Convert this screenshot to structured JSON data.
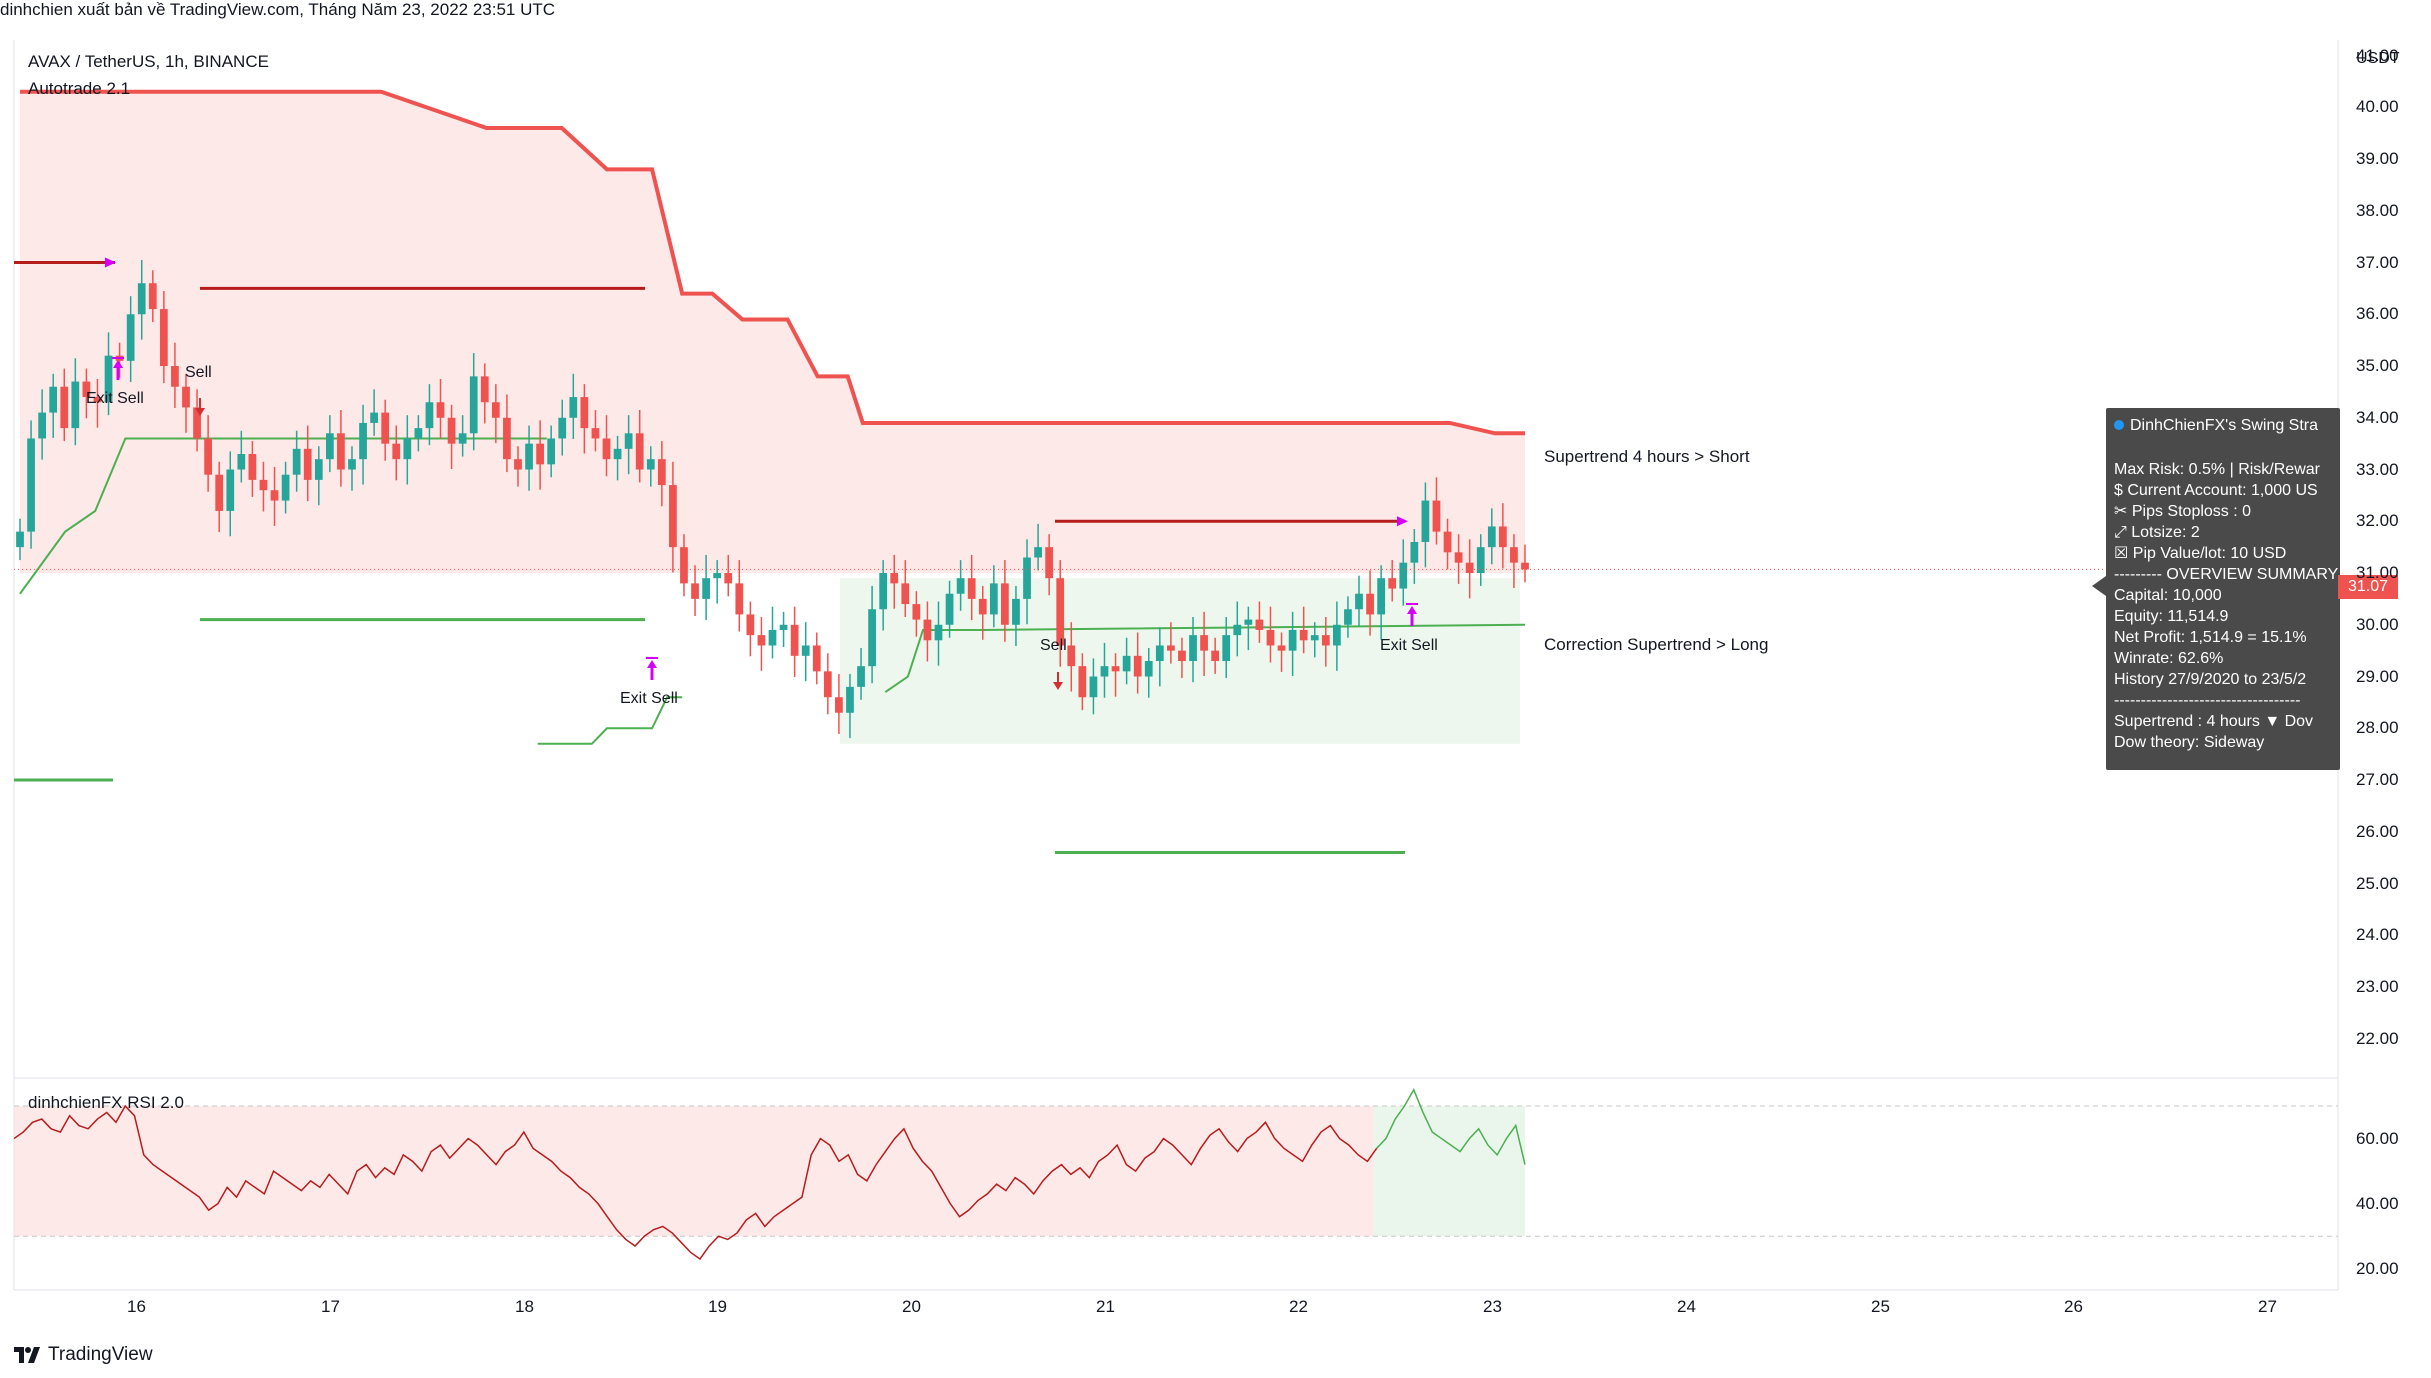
{
  "header": {
    "credit": "dinhchien xuất bản về TradingView.com, Tháng Năm 23, 2022 23:51 UTC"
  },
  "legend": {
    "symbol": "AVAX / TetherUS, 1h, BINANCE",
    "indicator": "Autotrade 2.1",
    "rsi_name": "dinhchienFX RSI 2.0"
  },
  "annotations": {
    "sell_1": "Sell",
    "exit_sell_1": "Exit Sell",
    "exit_sell_2": "Exit Sell",
    "sell_2": "Sell",
    "exit_sell_3": "Exit Sell",
    "supertrend_label": "Supertrend 4 hours > Short",
    "correction_label": "Correction Supertrend  > Long"
  },
  "info_panel": {
    "title": "DinhChienFX's Swing Stra",
    "rows": [
      "Max Risk: 0.5% | Risk/Rewar",
      "$ Current Account: 1,000 US",
      "✂ Pips Stoploss : 0",
      "⤢ Lotsize: 2",
      "☒ Pip Value/lot: 10 USD",
      "--------- OVERVIEW SUMMARY",
      "Capital: 10,000",
      "Equity: 11,514.9",
      "Net Profit: 1,514.9 = 15.1%",
      "Winrate: 62.6%",
      "History 27/9/2020 to 23/5/2",
      "-----------------------------------",
      "Supertrend : 4 hours  ▼  Dov",
      "Dow theory: Sideway"
    ]
  },
  "price_badge": "31.07",
  "axis": {
    "currency": "USDT",
    "y_ticks": [
      "41.00",
      "40.00",
      "39.00",
      "38.00",
      "37.00",
      "36.00",
      "35.00",
      "34.00",
      "33.00",
      "32.00",
      "31.00",
      "30.00",
      "29.00",
      "28.00",
      "27.00",
      "26.00",
      "25.00",
      "24.00",
      "23.00",
      "22.00"
    ],
    "rsi_ticks": [
      "60.00",
      "40.00",
      "20.00"
    ],
    "x_ticks": [
      "16",
      "17",
      "18",
      "19",
      "20",
      "21",
      "22",
      "23",
      "24",
      "25",
      "26",
      "27"
    ]
  },
  "footer": {
    "brand": "TradingView"
  },
  "colors": {
    "bull": "#26a69a",
    "bear": "#ef5350",
    "supertrend": "#ef5350",
    "correction": "#4caf50",
    "sell_level": "#b71c1c",
    "marker": "#d500f9",
    "short_zone": "#fde0e0",
    "long_zone": "#e8f5e9"
  },
  "chart_data": [
    {
      "type": "candlestick",
      "title": "AVAX / TetherUS, 1h, BINANCE",
      "x_ticks": [
        "16",
        "17",
        "18",
        "19",
        "20",
        "21",
        "22",
        "23",
        "24",
        "25",
        "26",
        "27"
      ],
      "ylim": [
        21.3,
        41.3
      ],
      "last_price": 31.07,
      "closes": [
        31.8,
        33.6,
        34.1,
        34.6,
        33.8,
        34.7,
        34.4,
        34.3,
        35.2,
        35.1,
        36.0,
        36.6,
        36.1,
        35.0,
        34.6,
        34.2,
        33.6,
        32.9,
        32.2,
        33.0,
        33.3,
        32.8,
        32.6,
        32.4,
        32.9,
        33.4,
        32.8,
        33.2,
        33.7,
        33.0,
        33.2,
        33.9,
        34.1,
        33.5,
        33.2,
        33.6,
        33.8,
        34.3,
        34.0,
        33.5,
        33.7,
        34.8,
        34.3,
        34.0,
        33.2,
        33.0,
        33.5,
        33.1,
        33.6,
        34.0,
        34.4,
        33.8,
        33.6,
        33.2,
        33.4,
        33.7,
        33.0,
        33.2,
        32.7,
        31.5,
        30.8,
        30.5,
        30.9,
        31.0,
        30.8,
        30.2,
        29.8,
        29.6,
        29.9,
        30.0,
        29.4,
        29.6,
        29.1,
        28.6,
        28.3,
        28.8,
        29.2,
        30.3,
        31.0,
        30.8,
        30.4,
        30.1,
        29.7,
        30.0,
        30.6,
        30.9,
        30.5,
        30.2,
        30.8,
        30.0,
        30.5,
        31.3,
        31.5,
        30.9,
        29.6,
        29.2,
        28.6,
        29.0,
        29.2,
        29.1,
        29.4,
        29.0,
        29.3,
        29.6,
        29.5,
        29.3,
        29.8,
        29.5,
        29.3,
        29.8,
        30.0,
        30.1,
        29.9,
        29.6,
        29.5,
        29.9,
        29.7,
        29.8,
        29.6,
        30.0,
        30.3,
        30.6,
        30.2,
        30.9,
        30.7,
        31.2,
        31.6,
        32.4,
        31.8,
        31.4,
        31.2,
        31.0,
        31.5,
        31.9,
        31.5,
        31.2,
        31.07
      ],
      "supertrend_4h_short": [
        [
          0,
          40.3
        ],
        [
          0.24,
          40.3
        ],
        [
          0.31,
          39.6
        ],
        [
          0.36,
          39.6
        ],
        [
          0.39,
          38.8
        ],
        [
          0.42,
          38.8
        ],
        [
          0.44,
          36.4
        ],
        [
          0.46,
          36.4
        ],
        [
          0.48,
          35.9
        ],
        [
          0.51,
          35.9
        ],
        [
          0.53,
          34.8
        ],
        [
          0.55,
          34.8
        ],
        [
          0.56,
          33.9
        ],
        [
          0.6,
          33.9
        ],
        [
          0.65,
          33.9
        ],
        [
          0.95,
          33.9
        ],
        [
          0.98,
          33.7
        ],
        [
          1.0,
          33.7
        ]
      ],
      "sell_levels": [
        37.0,
        36.5,
        32.0
      ],
      "stop_levels": [
        30.1,
        27.0,
        25.6
      ]
    },
    {
      "type": "line",
      "title": "dinhchienFX RSI 2.0",
      "ylim": [
        15,
        78
      ],
      "ticks": [
        60,
        40,
        20
      ],
      "upper_band": 70,
      "lower_band": 30,
      "values": [
        60,
        62,
        65,
        66,
        63,
        62,
        67,
        64,
        63,
        66,
        68,
        65,
        70,
        67,
        55,
        52,
        50,
        48,
        46,
        44,
        42,
        38,
        40,
        45,
        42,
        47,
        45,
        43,
        50,
        48,
        46,
        44,
        47,
        45,
        49,
        46,
        43,
        50,
        52,
        48,
        51,
        49,
        55,
        53,
        50,
        56,
        58,
        54,
        57,
        60,
        58,
        55,
        52,
        56,
        58,
        62,
        57,
        55,
        53,
        50,
        48,
        45,
        43,
        40,
        36,
        32,
        29,
        27,
        30,
        32,
        33,
        31,
        28,
        25,
        23,
        27,
        30,
        29,
        31,
        35,
        37,
        33,
        36,
        38,
        40,
        42,
        55,
        60,
        58,
        53,
        55,
        49,
        47,
        52,
        56,
        60,
        63,
        57,
        53,
        50,
        45,
        40,
        36,
        38,
        41,
        43,
        46,
        44,
        48,
        46,
        43,
        47,
        50,
        52,
        49,
        51,
        48,
        53,
        55,
        58,
        52,
        50,
        54,
        56,
        60,
        58,
        55,
        52,
        57,
        61,
        63,
        59,
        56,
        60,
        62,
        65,
        60,
        57,
        55,
        53,
        58,
        62,
        64,
        60,
        58,
        55,
        53,
        57,
        60,
        66,
        70,
        75,
        68,
        62,
        60,
        58,
        56,
        60,
        63,
        58,
        55,
        60,
        64,
        52
      ],
      "long_zone_start": 0.9
    }
  ]
}
